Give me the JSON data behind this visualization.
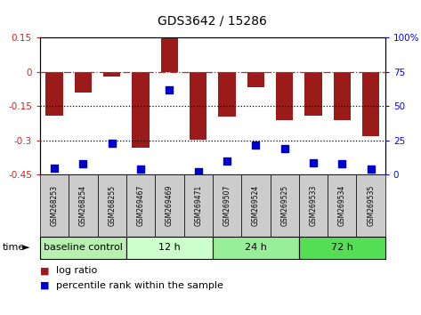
{
  "title": "GDS3642 / 15286",
  "categories": [
    "GSM268253",
    "GSM268254",
    "GSM268255",
    "GSM269467",
    "GSM269469",
    "GSM269471",
    "GSM269507",
    "GSM269524",
    "GSM269525",
    "GSM269533",
    "GSM269534",
    "GSM269535"
  ],
  "log_ratio": [
    -0.19,
    -0.09,
    -0.02,
    -0.33,
    0.15,
    -0.295,
    -0.195,
    -0.065,
    -0.21,
    -0.19,
    -0.21,
    -0.28
  ],
  "percentile_rank": [
    5,
    8,
    23,
    4,
    62,
    2,
    10,
    22,
    19,
    9,
    8,
    4
  ],
  "bar_color": "#9b1a1a",
  "dot_color": "#0000cc",
  "ylim_left": [
    -0.45,
    0.15
  ],
  "ylim_right": [
    0,
    100
  ],
  "yticks_left": [
    -0.45,
    -0.3,
    -0.15,
    0,
    0.15
  ],
  "yticks_right": [
    0,
    25,
    50,
    75,
    100
  ],
  "hline_dash": 0.0,
  "hline_dot1": -0.15,
  "hline_dot2": -0.3,
  "groups": [
    {
      "label": "baseline control",
      "start": 0,
      "end": 3,
      "color": "#b8f0b0"
    },
    {
      "label": "12 h",
      "start": 3,
      "end": 6,
      "color": "#ccffcc"
    },
    {
      "label": "24 h",
      "start": 6,
      "end": 9,
      "color": "#99ee99"
    },
    {
      "label": "72 h",
      "start": 9,
      "end": 12,
      "color": "#55dd55"
    }
  ],
  "bar_width": 0.6,
  "dot_size": 40,
  "legend_labels": [
    "log ratio",
    "percentile rank within the sample"
  ],
  "background_color": "white",
  "sample_box_color": "#cccccc",
  "ytick_left_labels": [
    "-0.45",
    "-0.3",
    "-0.15",
    "0",
    "0.15"
  ],
  "ytick_right_labels": [
    "0",
    "25",
    "50",
    "75",
    "100%"
  ]
}
